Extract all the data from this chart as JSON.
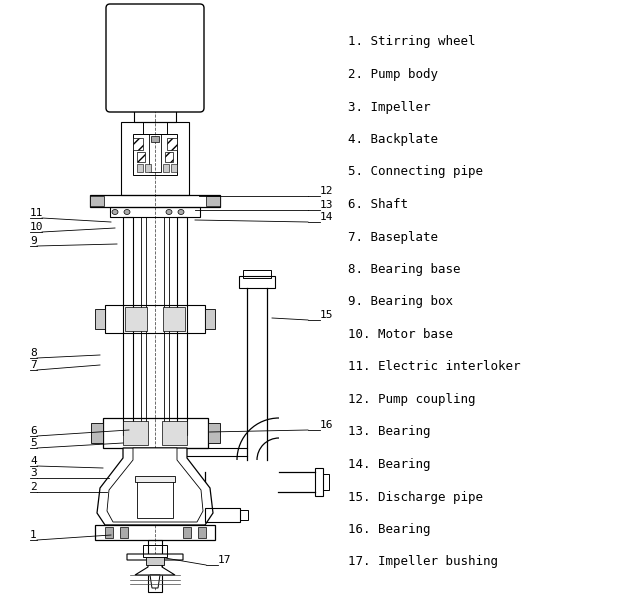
{
  "bg_color": "#ffffff",
  "legend_items": [
    "1. Stirring wheel",
    "2. Pump body",
    "3. Impeller",
    "4. Backplate",
    "5. Connecting pipe",
    "6. Shaft",
    "7. Baseplate",
    "8. Bearing base",
    "9. Bearing box",
    "10. Motor base",
    "11. Electric interloker",
    "12. Pump coupling",
    "13. Bearing",
    "14. Bearing",
    "15. Discharge pipe",
    "16. Bearing",
    "17. Impeller bushing"
  ],
  "font_size_legend": 9,
  "font_size_label": 8
}
